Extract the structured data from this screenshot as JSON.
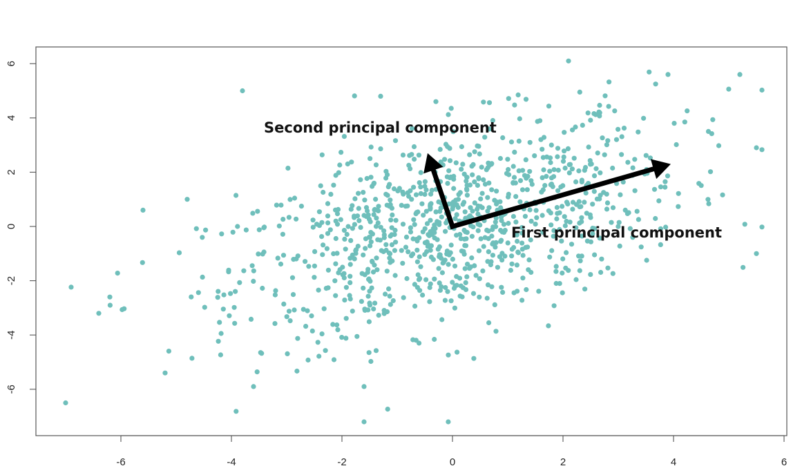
{
  "chart_data": {
    "type": "scatter",
    "title": "",
    "xlabel": "",
    "ylabel": "",
    "xlim": [
      -7.7,
      6.1
    ],
    "ylim": [
      -7.7,
      6.4
    ],
    "x_ticks": [
      -6,
      -4,
      -2,
      0,
      2,
      4,
      6
    ],
    "y_ticks": [
      6,
      4,
      2,
      0,
      -2,
      -4,
      -6
    ],
    "x_tick_labels": [
      "-6",
      "-4",
      "-2",
      "0",
      "2",
      "4",
      "6"
    ],
    "y_tick_labels": [
      "6",
      "4",
      "2",
      "0",
      "-2",
      "-4",
      "-6"
    ],
    "grid": false,
    "point_color": "#6fbfbb",
    "arrow_color": "#000000",
    "n_points": 1000,
    "sample_points": [
      [
        -7.0,
        -6.5
      ],
      [
        -6.4,
        -3.2
      ],
      [
        -6.2,
        -2.6
      ],
      [
        -5.6,
        0.6
      ],
      [
        -5.2,
        -5.4
      ],
      [
        -4.8,
        1.0
      ],
      [
        -3.8,
        5.0
      ],
      [
        -3.6,
        -5.9
      ],
      [
        -1.6,
        -7.2
      ],
      [
        -1.6,
        -5.9
      ],
      [
        -1.3,
        4.8
      ],
      [
        -0.3,
        4.6
      ],
      [
        2.1,
        6.1
      ],
      [
        3.9,
        5.6
      ],
      [
        5.2,
        5.6
      ],
      [
        5.5,
        2.9
      ],
      [
        5.5,
        -1.0
      ]
    ],
    "arrows": [
      {
        "label": "First principal component",
        "from": [
          0,
          0
        ],
        "to": [
          3.95,
          2.3
        ]
      },
      {
        "label": "Second principal component",
        "from": [
          0,
          0
        ],
        "to": [
          -0.45,
          2.7
        ]
      }
    ],
    "annotations": {
      "first": "First principal component",
      "second": "Second principal component"
    }
  }
}
